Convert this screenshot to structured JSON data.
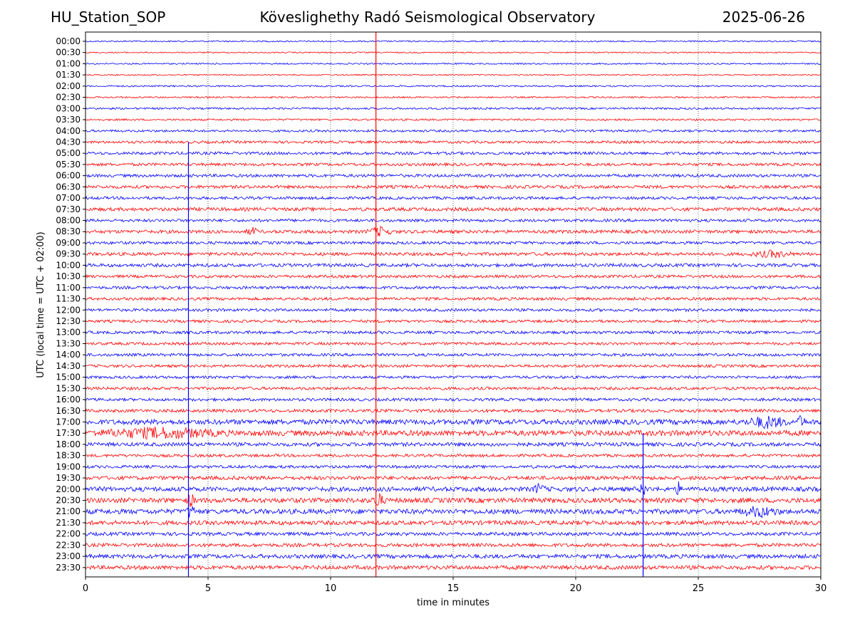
{
  "header": {
    "station": "HU_Station_SOP",
    "observatory": "Köveslighethy Radó Seismological Observatory",
    "date": "2025-06-26"
  },
  "chart_data": {
    "type": "line",
    "title": "Köveslighethy Radó Seismological Observatory",
    "xlabel": "time in minutes",
    "ylabel": "UTC (local time = UTC + 02:00)",
    "xlim": [
      0,
      30
    ],
    "x_ticks": [
      "0",
      "5",
      "10",
      "15",
      "20",
      "25",
      "30"
    ],
    "x_tick_values": [
      0,
      5,
      10,
      15,
      20,
      25,
      30
    ],
    "grid": "vertical dotted lines at x ticks",
    "legend": "none",
    "colors": {
      "even_rows": "#0000ff",
      "odd_rows": "#ff0000",
      "grid": "#000000",
      "axes": "#000000"
    },
    "rows": [
      {
        "label": "00:00",
        "amp": 1.0
      },
      {
        "label": "00:30",
        "amp": 0.9
      },
      {
        "label": "01:00",
        "amp": 1.0
      },
      {
        "label": "01:30",
        "amp": 0.9
      },
      {
        "label": "02:00",
        "amp": 1.1
      },
      {
        "label": "02:30",
        "amp": 1.1
      },
      {
        "label": "03:00",
        "amp": 1.3
      },
      {
        "label": "03:30",
        "amp": 1.3
      },
      {
        "label": "04:00",
        "amp": 1.6
      },
      {
        "label": "04:30",
        "amp": 1.8
      },
      {
        "label": "05:00",
        "amp": 2.0
      },
      {
        "label": "05:30",
        "amp": 2.0
      },
      {
        "label": "06:00",
        "amp": 2.1
      },
      {
        "label": "06:30",
        "amp": 2.2
      },
      {
        "label": "07:00",
        "amp": 2.0
      },
      {
        "label": "07:30",
        "amp": 2.4
      },
      {
        "label": "08:00",
        "amp": 2.0
      },
      {
        "label": "08:30",
        "amp": 2.3
      },
      {
        "label": "09:00",
        "amp": 2.0
      },
      {
        "label": "09:30",
        "amp": 2.3
      },
      {
        "label": "10:00",
        "amp": 2.3
      },
      {
        "label": "10:30",
        "amp": 2.0
      },
      {
        "label": "11:00",
        "amp": 2.0
      },
      {
        "label": "11:30",
        "amp": 2.0
      },
      {
        "label": "12:00",
        "amp": 2.0
      },
      {
        "label": "12:30",
        "amp": 1.9
      },
      {
        "label": "13:00",
        "amp": 2.0
      },
      {
        "label": "13:30",
        "amp": 1.9
      },
      {
        "label": "14:00",
        "amp": 2.0
      },
      {
        "label": "14:30",
        "amp": 1.9
      },
      {
        "label": "15:00",
        "amp": 1.9
      },
      {
        "label": "15:30",
        "amp": 2.0
      },
      {
        "label": "16:00",
        "amp": 2.0
      },
      {
        "label": "16:30",
        "amp": 2.2
      },
      {
        "label": "17:00",
        "amp": 3.6
      },
      {
        "label": "17:30",
        "amp": 3.8
      },
      {
        "label": "18:00",
        "amp": 2.6
      },
      {
        "label": "18:30",
        "amp": 2.0
      },
      {
        "label": "19:00",
        "amp": 2.0
      },
      {
        "label": "19:30",
        "amp": 2.6
      },
      {
        "label": "20:00",
        "amp": 3.2
      },
      {
        "label": "20:30",
        "amp": 3.4
      },
      {
        "label": "21:00",
        "amp": 3.4
      },
      {
        "label": "21:30",
        "amp": 3.0
      },
      {
        "label": "22:00",
        "amp": 2.4
      },
      {
        "label": "22:30",
        "amp": 2.4
      },
      {
        "label": "23:00",
        "amp": 2.8
      },
      {
        "label": "23:30",
        "amp": 2.8
      }
    ],
    "events": [
      {
        "x": 11.85,
        "color": "#ff0000",
        "kind": "vertical-line",
        "from_row": 0,
        "to_row": 47
      },
      {
        "x": 4.2,
        "color": "#0000ff",
        "kind": "vertical-line",
        "from_row": 9,
        "to_row": 47
      },
      {
        "x": 22.75,
        "color": "#0000ff",
        "kind": "vertical-line",
        "from_row": 35,
        "to_row": 47
      }
    ],
    "bursts": [
      {
        "row": 17,
        "x": 6.8,
        "amp": 5,
        "width": 0.3
      },
      {
        "row": 17,
        "x": 12.0,
        "amp": 6,
        "width": 0.6
      },
      {
        "row": 19,
        "x": 28.0,
        "amp": 4,
        "width": 1.0
      },
      {
        "row": 34,
        "x": 29.2,
        "amp": 8,
        "width": 0.2
      },
      {
        "row": 34,
        "x": 27.8,
        "amp": 7,
        "width": 1.0
      },
      {
        "row": 35,
        "x": 3.0,
        "amp": 6,
        "width": 3.0
      },
      {
        "row": 40,
        "x": 22.75,
        "amp": 10,
        "width": 0.15
      },
      {
        "row": 40,
        "x": 24.2,
        "amp": 8,
        "width": 0.15
      },
      {
        "row": 40,
        "x": 18.5,
        "amp": 6,
        "width": 0.3
      },
      {
        "row": 41,
        "x": 11.95,
        "amp": 9,
        "width": 0.3
      },
      {
        "row": 41,
        "x": 4.3,
        "amp": 8,
        "width": 0.2
      },
      {
        "row": 42,
        "x": 4.3,
        "amp": 10,
        "width": 0.2
      },
      {
        "row": 42,
        "x": 27.5,
        "amp": 6,
        "width": 1.0
      }
    ]
  }
}
